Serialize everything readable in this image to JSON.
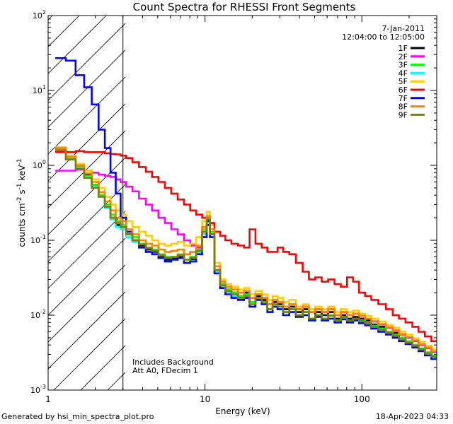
{
  "chart_data": {
    "type": "line",
    "title": "Count Spectra for RHESSI Front Segments",
    "xlabel": "Energy (keV)",
    "ylabel_parts": [
      "counts cm",
      "-2",
      " s",
      "-1",
      " keV",
      "-1"
    ],
    "xscale": "log",
    "yscale": "log",
    "xlim": [
      1,
      300
    ],
    "ylim": [
      0.001,
      100
    ],
    "x_ticks": [
      {
        "value": 1,
        "label": "1"
      },
      {
        "value": 10,
        "label": "10"
      },
      {
        "value": 100,
        "label": "100"
      }
    ],
    "y_ticks": [
      {
        "value": 0.001,
        "base": "10",
        "exp": "-3"
      },
      {
        "value": 0.01,
        "base": "10",
        "exp": "-2"
      },
      {
        "value": 0.1,
        "base": "10",
        "exp": "-1"
      },
      {
        "value": 1,
        "base": "10",
        "exp": "0"
      },
      {
        "value": 10,
        "base": "10",
        "exp": "1"
      },
      {
        "value": 100,
        "base": "10",
        "exp": "2"
      }
    ],
    "date": "7-Jan-2011",
    "time_range": "12:04:00 to 12:05:00",
    "annotation_lines": [
      "Includes Background",
      "Att A0, FDecim 1"
    ],
    "shaded_region_max_energy": 3,
    "legend_position": "top-right",
    "energies": [
      1.2,
      1.4,
      1.6,
      1.8,
      2.0,
      2.2,
      2.4,
      2.6,
      2.8,
      3.0,
      3.3,
      3.6,
      4.0,
      4.4,
      4.8,
      5.3,
      5.8,
      6.4,
      7.0,
      7.7,
      8.4,
      9.2,
      10.0,
      10.5,
      11.0,
      12.0,
      13.0,
      14.0,
      15.5,
      17.0,
      18.5,
      20.0,
      22.0,
      24.0,
      26.0,
      28.0,
      30.0,
      33.0,
      36.0,
      40.0,
      44.0,
      48.0,
      53.0,
      58.0,
      64.0,
      70.0,
      77.0,
      84.0,
      92.0,
      100.0,
      110.0,
      120.0,
      135.0,
      150.0,
      165.0,
      180.0,
      200.0,
      220.0,
      240.0,
      265.0,
      290.0
    ],
    "series": [
      {
        "name": "1F",
        "color": "#000000",
        "values": [
          1.7,
          1.3,
          0.95,
          0.75,
          0.55,
          0.4,
          0.28,
          0.2,
          0.16,
          0.15,
          0.12,
          0.1,
          0.085,
          0.075,
          0.07,
          0.06,
          0.055,
          0.058,
          0.06,
          0.05,
          0.055,
          0.07,
          0.13,
          0.18,
          0.12,
          0.04,
          0.025,
          0.022,
          0.02,
          0.018,
          0.02,
          0.015,
          0.018,
          0.016,
          0.012,
          0.015,
          0.014,
          0.012,
          0.013,
          0.011,
          0.012,
          0.009,
          0.011,
          0.01,
          0.011,
          0.009,
          0.01,
          0.009,
          0.0095,
          0.009,
          0.0085,
          0.0075,
          0.007,
          0.006,
          0.0058,
          0.005,
          0.0045,
          0.004,
          0.0035,
          0.003,
          0.0028
        ]
      },
      {
        "name": "2F",
        "color": "#ff00ff",
        "values": [
          0.85,
          0.85,
          0.88,
          0.85,
          0.8,
          0.75,
          0.72,
          0.7,
          0.65,
          0.6,
          0.52,
          0.45,
          0.36,
          0.3,
          0.25,
          0.2,
          0.17,
          0.14,
          0.12,
          0.1,
          0.085,
          0.08,
          0.12,
          0.16,
          0.12,
          0.045,
          0.028,
          0.024,
          0.022,
          0.02,
          0.021,
          0.017,
          0.019,
          0.017,
          0.014,
          0.016,
          0.015,
          0.013,
          0.014,
          0.012,
          0.013,
          0.011,
          0.012,
          0.011,
          0.012,
          0.01,
          0.011,
          0.01,
          0.0105,
          0.0098,
          0.009,
          0.0082,
          0.0075,
          0.0068,
          0.0062,
          0.0055,
          0.005,
          0.0045,
          0.004,
          0.0036,
          0.0032
        ]
      },
      {
        "name": "3F",
        "color": "#00ff00",
        "values": [
          1.6,
          1.2,
          0.95,
          0.72,
          0.55,
          0.4,
          0.3,
          0.22,
          0.18,
          0.16,
          0.13,
          0.11,
          0.09,
          0.08,
          0.075,
          0.065,
          0.06,
          0.06,
          0.065,
          0.055,
          0.06,
          0.075,
          0.14,
          0.2,
          0.13,
          0.04,
          0.026,
          0.022,
          0.02,
          0.018,
          0.019,
          0.015,
          0.017,
          0.015,
          0.012,
          0.014,
          0.013,
          0.011,
          0.012,
          0.01,
          0.011,
          0.009,
          0.01,
          0.009,
          0.01,
          0.0085,
          0.0095,
          0.0085,
          0.009,
          0.0085,
          0.008,
          0.0072,
          0.0066,
          0.006,
          0.0055,
          0.005,
          0.0045,
          0.004,
          0.0036,
          0.0032,
          0.0029
        ]
      },
      {
        "name": "4F",
        "color": "#00ffff",
        "values": [
          1.65,
          1.25,
          0.92,
          0.7,
          0.52,
          0.38,
          0.27,
          0.19,
          0.15,
          0.14,
          0.11,
          0.095,
          0.08,
          0.07,
          0.066,
          0.058,
          0.052,
          0.055,
          0.058,
          0.05,
          0.053,
          0.068,
          0.12,
          0.17,
          0.11,
          0.038,
          0.024,
          0.02,
          0.018,
          0.016,
          0.018,
          0.013,
          0.016,
          0.014,
          0.011,
          0.013,
          0.012,
          0.01,
          0.011,
          0.0095,
          0.01,
          0.0085,
          0.0095,
          0.0085,
          0.009,
          0.008,
          0.009,
          0.008,
          0.0085,
          0.008,
          0.0075,
          0.0068,
          0.0062,
          0.0056,
          0.0052,
          0.0047,
          0.0043,
          0.0038,
          0.0034,
          0.003,
          0.0027
        ]
      },
      {
        "name": "5F",
        "color": "#ffcc00",
        "values": [
          1.75,
          1.35,
          1.05,
          0.85,
          0.65,
          0.5,
          0.38,
          0.3,
          0.25,
          0.22,
          0.18,
          0.15,
          0.13,
          0.115,
          0.1,
          0.09,
          0.085,
          0.09,
          0.095,
          0.085,
          0.09,
          0.11,
          0.18,
          0.24,
          0.16,
          0.05,
          0.03,
          0.026,
          0.024,
          0.022,
          0.023,
          0.019,
          0.021,
          0.019,
          0.016,
          0.018,
          0.017,
          0.015,
          0.016,
          0.013,
          0.014,
          0.012,
          0.013,
          0.012,
          0.013,
          0.011,
          0.012,
          0.011,
          0.0115,
          0.0105,
          0.0098,
          0.009,
          0.0082,
          0.0074,
          0.0068,
          0.006,
          0.0055,
          0.0049,
          0.0044,
          0.0039,
          0.0035
        ]
      },
      {
        "name": "6F",
        "color": "#ff0000",
        "values": [
          1.5,
          1.5,
          1.55,
          1.5,
          1.5,
          1.5,
          1.45,
          1.42,
          1.4,
          1.35,
          1.25,
          1.1,
          0.95,
          0.82,
          0.7,
          0.6,
          0.5,
          0.42,
          0.35,
          0.3,
          0.25,
          0.22,
          0.2,
          0.19,
          0.17,
          0.13,
          0.115,
          0.1,
          0.09,
          0.085,
          0.08,
          0.14,
          0.09,
          0.08,
          0.07,
          0.07,
          0.08,
          0.07,
          0.065,
          0.05,
          0.038,
          0.03,
          0.032,
          0.028,
          0.03,
          0.026,
          0.024,
          0.032,
          0.028,
          0.02,
          0.018,
          0.016,
          0.014,
          0.012,
          0.01,
          0.009,
          0.008,
          0.007,
          0.006,
          0.0052,
          0.0045
        ]
      },
      {
        "name": "7F",
        "color": "#0000ff",
        "values": [
          27.0,
          25.0,
          16.0,
          11.0,
          6.5,
          3.0,
          1.7,
          0.8,
          0.42,
          0.2,
          0.13,
          0.1,
          0.08,
          0.07,
          0.065,
          0.058,
          0.052,
          0.055,
          0.058,
          0.05,
          0.052,
          0.065,
          0.11,
          0.16,
          0.11,
          0.036,
          0.023,
          0.019,
          0.017,
          0.016,
          0.017,
          0.013,
          0.016,
          0.014,
          0.011,
          0.013,
          0.012,
          0.01,
          0.011,
          0.0095,
          0.01,
          0.0085,
          0.0095,
          0.0085,
          0.009,
          0.008,
          0.0088,
          0.008,
          0.0085,
          0.0078,
          0.0073,
          0.0066,
          0.006,
          0.0055,
          0.005,
          0.0045,
          0.0041,
          0.0037,
          0.0033,
          0.0029,
          0.0026
        ]
      },
      {
        "name": "8F",
        "color": "#ff8000",
        "values": [
          1.7,
          1.3,
          1.0,
          0.78,
          0.6,
          0.44,
          0.33,
          0.25,
          0.2,
          0.18,
          0.14,
          0.12,
          0.1,
          0.09,
          0.085,
          0.075,
          0.07,
          0.072,
          0.075,
          0.065,
          0.07,
          0.085,
          0.15,
          0.21,
          0.14,
          0.045,
          0.028,
          0.024,
          0.022,
          0.02,
          0.021,
          0.017,
          0.019,
          0.017,
          0.014,
          0.016,
          0.015,
          0.013,
          0.014,
          0.012,
          0.013,
          0.011,
          0.012,
          0.011,
          0.012,
          0.01,
          0.011,
          0.01,
          0.0105,
          0.0098,
          0.009,
          0.0083,
          0.0076,
          0.0069,
          0.0063,
          0.0056,
          0.0051,
          0.0046,
          0.0041,
          0.0037,
          0.0033
        ]
      },
      {
        "name": "9F",
        "color": "#808000",
        "values": [
          1.6,
          1.2,
          0.9,
          0.68,
          0.5,
          0.38,
          0.28,
          0.2,
          0.17,
          0.15,
          0.12,
          0.1,
          0.088,
          0.078,
          0.072,
          0.063,
          0.058,
          0.06,
          0.063,
          0.055,
          0.058,
          0.072,
          0.13,
          0.19,
          0.12,
          0.04,
          0.025,
          0.021,
          0.019,
          0.017,
          0.018,
          0.014,
          0.017,
          0.015,
          0.012,
          0.014,
          0.013,
          0.011,
          0.012,
          0.01,
          0.011,
          0.009,
          0.01,
          0.009,
          0.0098,
          0.0086,
          0.0094,
          0.0085,
          0.009,
          0.0083,
          0.0078,
          0.007,
          0.0064,
          0.0058,
          0.0053,
          0.0048,
          0.0043,
          0.0039,
          0.0035,
          0.0031,
          0.0028
        ]
      }
    ]
  },
  "footer": {
    "generated_by": "Generated by hsi_min_spectra_plot.pro",
    "timestamp": "18-Apr-2023 04:33"
  }
}
